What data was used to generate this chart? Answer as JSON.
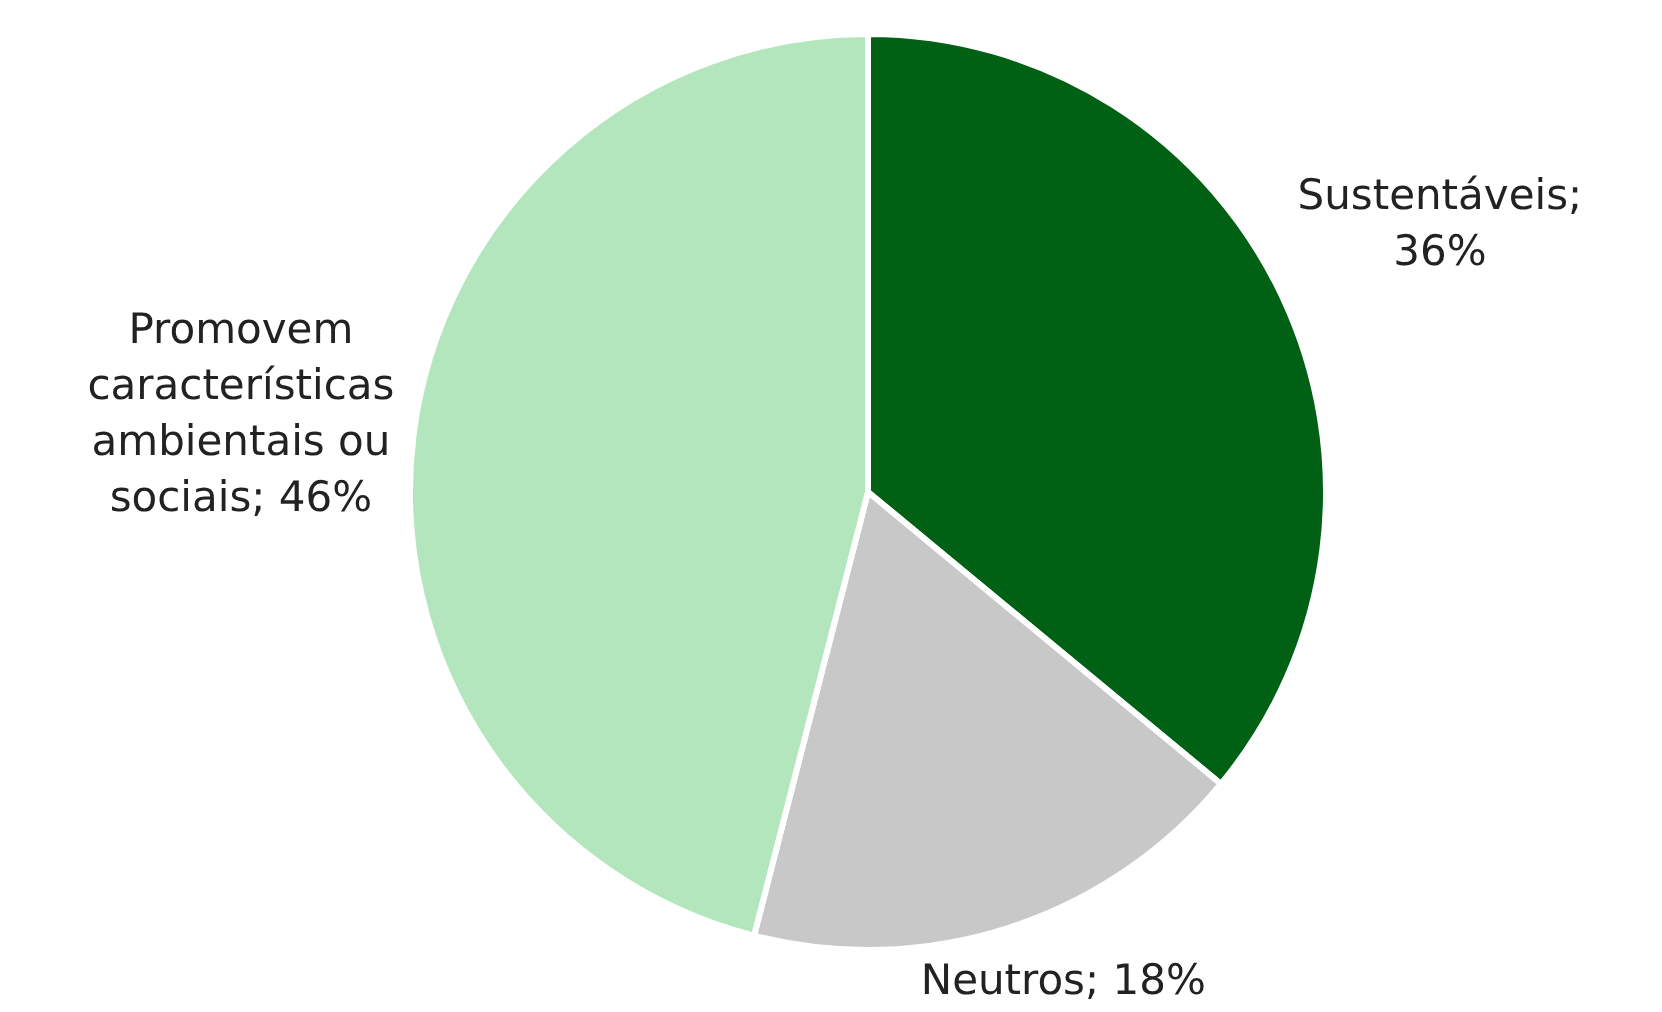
{
  "chart_data": {
    "type": "pie",
    "categories": [
      "Sustentáveis; 36%",
      "Neutros; 18%",
      "Promovem características ambientais ou sociais; 46%"
    ],
    "values": [
      36,
      18,
      46
    ],
    "colors": [
      "#006014",
      "#c8c8c8",
      "#b3e6bd"
    ]
  }
}
